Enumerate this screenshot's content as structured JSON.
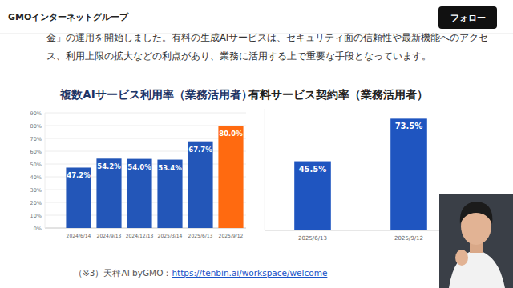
{
  "header": {
    "brand": "GMOインターネットグループ",
    "button": "フォロー"
  },
  "paragraph": [
    "金」の運用を開始しました。有料の生成AIサービスは、セキュリティ面の信頼性や最新機能へのアクセ",
    "ス、利用上限の拡大などの利点があり、業務に活用する上で重要な手段となっています。"
  ],
  "footnote": {
    "text": "（※3）天秤AI byGMO：",
    "link": "https://tenbin.ai/workspace/welcome"
  },
  "chart_data": [
    {
      "type": "bar",
      "title": "複数AIサービス利用率（業務活用者）",
      "categories": [
        "2024/6/14",
        "2024/9/13",
        "2024/12/13",
        "2025/3/14",
        "2025/6/13",
        "2025/9/12"
      ],
      "values": [
        47.2,
        54.2,
        54.0,
        53.4,
        67.7,
        80.0
      ],
      "value_labels": [
        "47.2%",
        "54.2%",
        "54.0%",
        "53.4%",
        "67.7%",
        "80.0%"
      ],
      "colors": [
        "#2356b8",
        "#2356b8",
        "#2356b8",
        "#2356b8",
        "#2356b8",
        "#ff6a10"
      ],
      "ylim": [
        0,
        90
      ],
      "yticks": [
        {
          "value": 0,
          "label": "0%"
        },
        {
          "value": 10,
          "label": "10%"
        },
        {
          "value": 20,
          "label": "20%"
        },
        {
          "value": 30,
          "label": "30%"
        },
        {
          "value": 40,
          "label": "40%"
        },
        {
          "value": 50,
          "label": "50%"
        },
        {
          "value": 60,
          "label": "60%"
        },
        {
          "value": 70,
          "label": "70%"
        },
        {
          "value": 80,
          "label": "80%"
        },
        {
          "value": 90,
          "label": "90%"
        }
      ],
      "grid": true,
      "data_labels": true
    },
    {
      "type": "bar",
      "title": "有料サービス契約率（業務活用者）",
      "categories": [
        "2025/6/13",
        "2025/9/12"
      ],
      "values": [
        45.5,
        73.5
      ],
      "value_labels": [
        "45.5%",
        "73.5%"
      ],
      "color": "#1f55c0",
      "ylim": [
        0,
        80
      ],
      "data_labels": true,
      "tick_labels": "x"
    }
  ]
}
